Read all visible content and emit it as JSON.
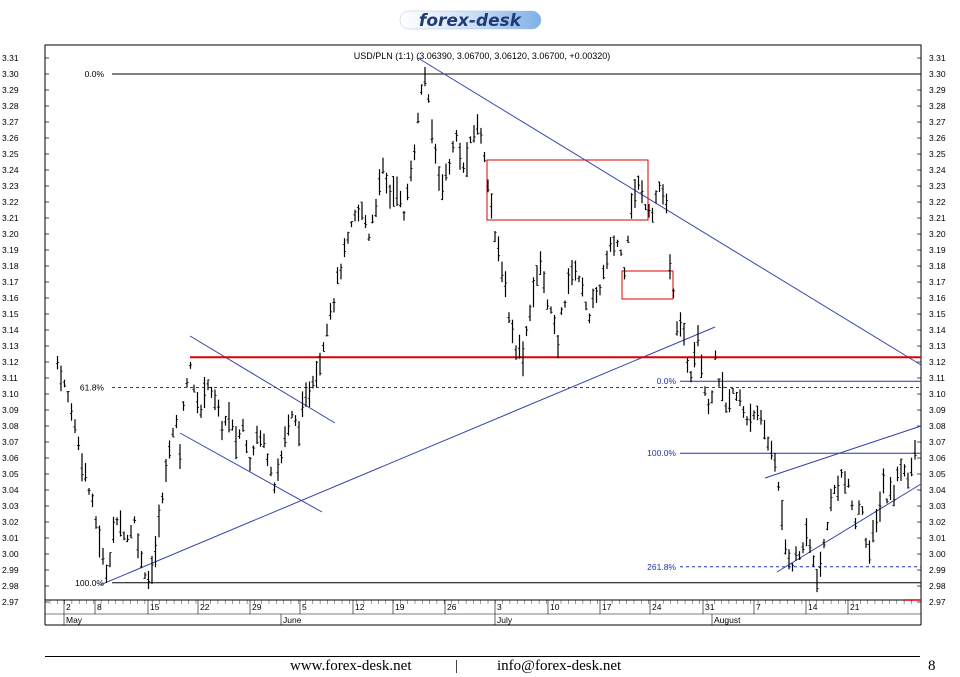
{
  "header": {
    "logo_text": "forex-desk"
  },
  "footer": {
    "website": "www.forex-desk.net",
    "separator": "|",
    "email": "info@forex-desk.net",
    "page_number": "8"
  },
  "chart_data": {
    "type": "bar",
    "title": "USD/PLN (1:1) (3.06390, 3.06700, 3.06120, 3.06700, +0.00320)",
    "ylim": [
      2.97,
      3.31
    ],
    "y_ticks": [
      "2.97",
      "2.98",
      "2.99",
      "3.00",
      "3.01",
      "3.02",
      "3.03",
      "3.04",
      "3.05",
      "3.06",
      "3.07",
      "3.08",
      "3.09",
      "3.10",
      "3.11",
      "3.12",
      "3.13",
      "3.14",
      "3.15",
      "3.16",
      "3.17",
      "3.18",
      "3.19",
      "3.20",
      "3.21",
      "3.22",
      "3.23",
      "3.24",
      "3.25",
      "3.26",
      "3.27",
      "3.28",
      "3.29",
      "3.30",
      "3.31"
    ],
    "day_ticks": [
      "2",
      "8",
      "15",
      "22",
      "29",
      "5",
      "12",
      "19",
      "26",
      "3",
      "10",
      "17",
      "24",
      "31",
      "7",
      "14",
      "21"
    ],
    "month_labels": [
      "May",
      "June",
      "July",
      "August"
    ],
    "price_points": [
      [
        -3,
        3.12
      ],
      [
        -1,
        3.105
      ],
      [
        1,
        3.09
      ],
      [
        3,
        3.07
      ],
      [
        5,
        3.05
      ],
      [
        7,
        3.03
      ],
      [
        9,
        3.01
      ],
      [
        10,
        2.995
      ],
      [
        11,
        2.99
      ],
      [
        12,
        3.0
      ],
      [
        13,
        3.015
      ],
      [
        15,
        3.02
      ],
      [
        17,
        3.01
      ],
      [
        19,
        3.02
      ],
      [
        20,
        3.01
      ],
      [
        21,
        2.995
      ],
      [
        23,
        2.985
      ],
      [
        25,
        3.0
      ],
      [
        26,
        3.02
      ],
      [
        28,
        3.05
      ],
      [
        29,
        3.07
      ],
      [
        31,
        3.08
      ],
      [
        32,
        3.065
      ],
      [
        33,
        3.09
      ],
      [
        34,
        3.11
      ],
      [
        35,
        3.12
      ],
      [
        36,
        3.1
      ],
      [
        38,
        3.09
      ],
      [
        40,
        3.11
      ],
      [
        42,
        3.095
      ],
      [
        44,
        3.08
      ],
      [
        46,
        3.085
      ],
      [
        48,
        3.07
      ],
      [
        50,
        3.08
      ],
      [
        52,
        3.06
      ],
      [
        54,
        3.075
      ],
      [
        56,
        3.07
      ],
      [
        58,
        3.055
      ],
      [
        59,
        3.045
      ],
      [
        61,
        3.06
      ],
      [
        62,
        3.075
      ],
      [
        64,
        3.085
      ],
      [
        66,
        3.08
      ],
      [
        68,
        3.095
      ],
      [
        70,
        3.11
      ],
      [
        72,
        3.12
      ],
      [
        74,
        3.145
      ],
      [
        76,
        3.16
      ],
      [
        78,
        3.18
      ],
      [
        80,
        3.195
      ],
      [
        82,
        3.21
      ],
      [
        84,
        3.215
      ],
      [
        86,
        3.2
      ],
      [
        88,
        3.22
      ],
      [
        90,
        3.24
      ],
      [
        92,
        3.225
      ],
      [
        94,
        3.23
      ],
      [
        96,
        3.21
      ],
      [
        98,
        3.24
      ],
      [
        100,
        3.27
      ],
      [
        101,
        3.29
      ],
      [
        102,
        3.3
      ],
      [
        103,
        3.28
      ],
      [
        105,
        3.25
      ],
      [
        107,
        3.23
      ],
      [
        109,
        3.245
      ],
      [
        111,
        3.26
      ],
      [
        113,
        3.24
      ],
      [
        115,
        3.255
      ],
      [
        117,
        3.27
      ],
      [
        119,
        3.25
      ],
      [
        121,
        3.22
      ],
      [
        122,
        3.195
      ],
      [
        124,
        3.18
      ],
      [
        126,
        3.15
      ],
      [
        128,
        3.13
      ],
      [
        130,
        3.125
      ],
      [
        131,
        3.14
      ],
      [
        133,
        3.165
      ],
      [
        135,
        3.18
      ],
      [
        137,
        3.16
      ],
      [
        139,
        3.14
      ],
      [
        140,
        3.13
      ],
      [
        141,
        3.15
      ],
      [
        143,
        3.17
      ],
      [
        145,
        3.18
      ],
      [
        147,
        3.165
      ],
      [
        149,
        3.15
      ],
      [
        151,
        3.16
      ],
      [
        153,
        3.175
      ],
      [
        155,
        3.19
      ],
      [
        157,
        3.195
      ],
      [
        159,
        3.18
      ],
      [
        160,
        3.2
      ],
      [
        161,
        3.22
      ],
      [
        163,
        3.23
      ],
      [
        165,
        3.22
      ],
      [
        167,
        3.215
      ],
      [
        169,
        3.23
      ],
      [
        171,
        3.215
      ],
      [
        172,
        3.18
      ],
      [
        173,
        3.16
      ],
      [
        174,
        3.145
      ],
      [
        176,
        3.135
      ],
      [
        177,
        3.12
      ],
      [
        178,
        3.115
      ],
      [
        179,
        3.13
      ],
      [
        180,
        3.14
      ],
      [
        181,
        3.12
      ],
      [
        182,
        3.105
      ],
      [
        183,
        3.095
      ],
      [
        184,
        3.1
      ],
      [
        185,
        3.12
      ],
      [
        186,
        3.11
      ],
      [
        187,
        3.1
      ],
      [
        188,
        3.09
      ],
      [
        190,
        3.1
      ],
      [
        192,
        3.095
      ],
      [
        194,
        3.085
      ],
      [
        196,
        3.09
      ],
      [
        198,
        3.08
      ],
      [
        200,
        3.07
      ],
      [
        202,
        3.06
      ],
      [
        203,
        3.04
      ],
      [
        204,
        3.02
      ],
      [
        205,
        3.005
      ],
      [
        207,
        2.995
      ],
      [
        209,
        3.0
      ],
      [
        211,
        3.01
      ],
      [
        212,
        3.005
      ],
      [
        213,
        2.995
      ],
      [
        214,
        2.985
      ],
      [
        215,
        2.99
      ],
      [
        217,
        3.02
      ],
      [
        219,
        3.04
      ],
      [
        221,
        3.05
      ],
      [
        223,
        3.04
      ],
      [
        225,
        3.02
      ],
      [
        227,
        3.03
      ],
      [
        228,
        3.01
      ],
      [
        229,
        3.0
      ],
      [
        231,
        3.02
      ],
      [
        233,
        3.045
      ],
      [
        234,
        3.035
      ],
      [
        236,
        3.04
      ],
      [
        238,
        3.055
      ],
      [
        240,
        3.05
      ],
      [
        242,
        3.06
      ],
      [
        243,
        3.08
      ],
      [
        244,
        3.065
      ]
    ],
    "support_level": 3.123,
    "fib_left": [
      {
        "label": "0.0%",
        "value": 3.3
      },
      {
        "label": "61.8%",
        "value": 3.104
      },
      {
        "label": "100.0%",
        "value": 2.982
      }
    ],
    "fib_right": [
      {
        "label": "0.0%",
        "value": 3.108
      },
      {
        "label": "100.0%",
        "value": 3.063
      },
      {
        "label": "261.8%",
        "value": 2.992
      }
    ],
    "colors": {
      "price": "#000000",
      "trendline": "#3344aa",
      "support": "#dd0000",
      "boxes": "#dd0000",
      "fib_right": "#2233aa",
      "logo_gradient": "#7fb0e6"
    },
    "grid": false,
    "legend": "none"
  }
}
